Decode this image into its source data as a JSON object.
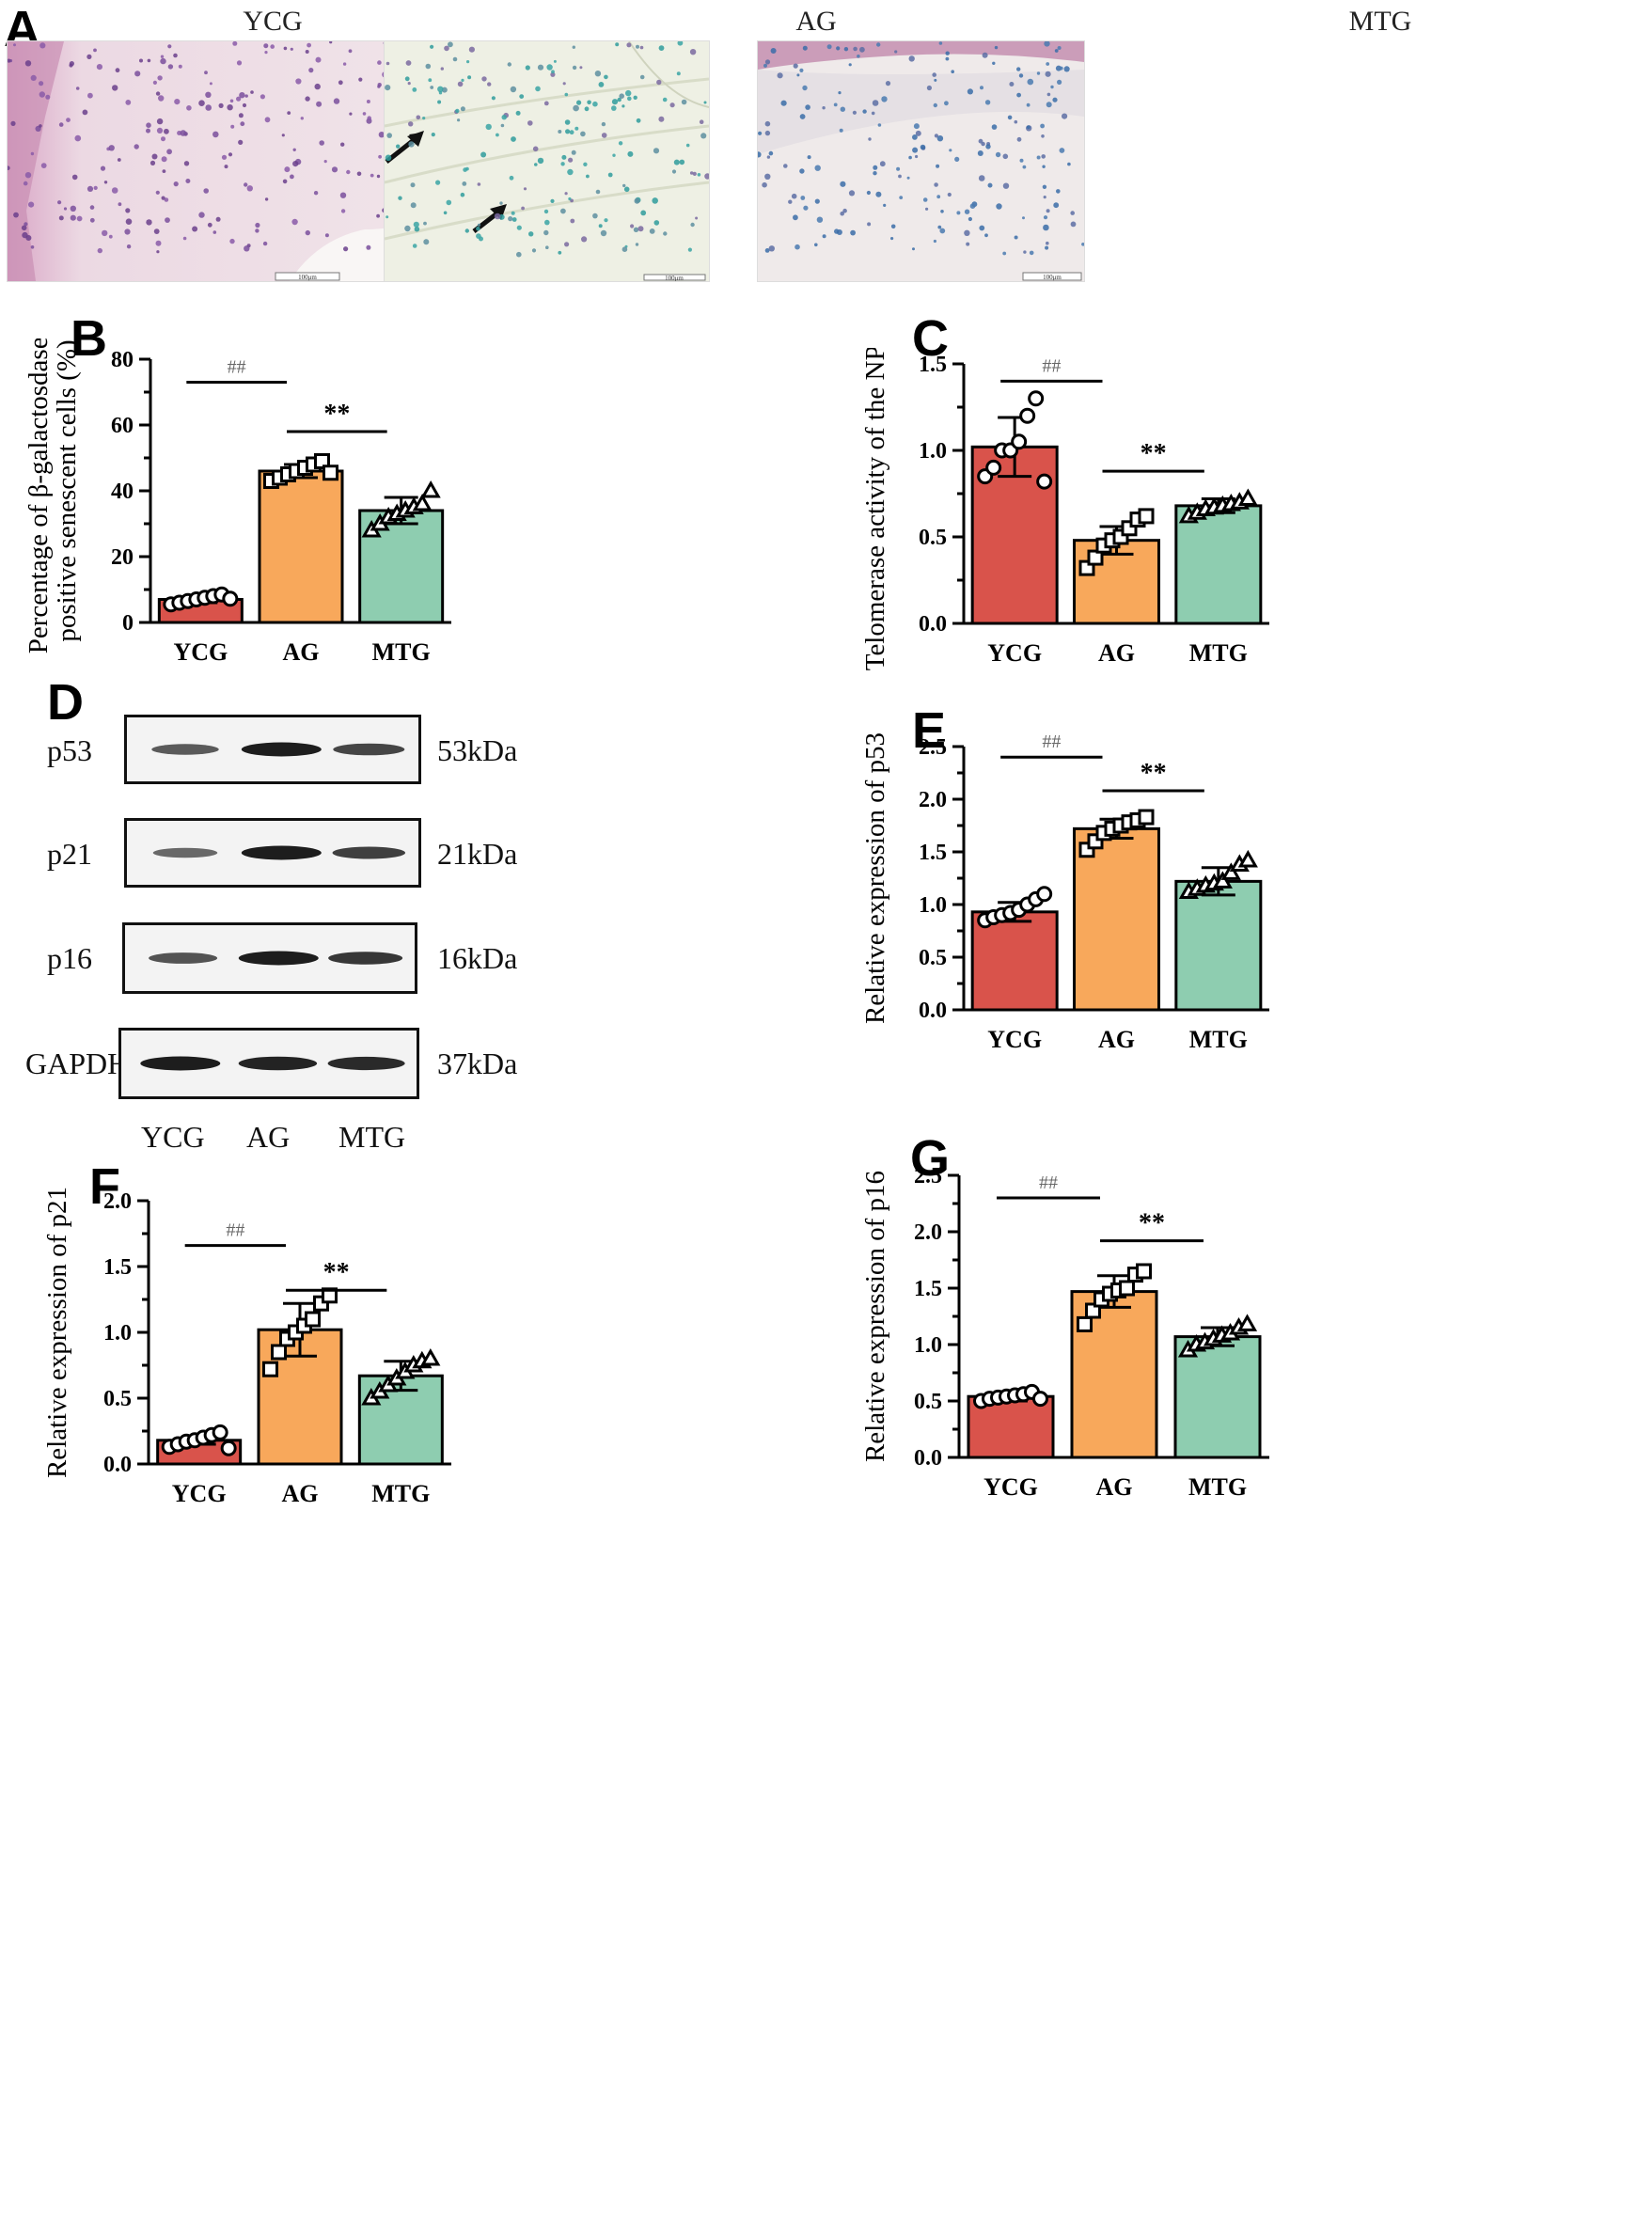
{
  "panels": {
    "A": "A",
    "B": "B",
    "C": "C",
    "D": "D",
    "E": "E",
    "F": "F",
    "G": "G"
  },
  "micrographs": {
    "labels": [
      "YCG",
      "AG",
      "MTG"
    ],
    "scale_bar": "100μm"
  },
  "western_blot": {
    "proteins": [
      {
        "name": "p53",
        "size": "53kDa",
        "intensity": [
          0.55,
          1.0,
          0.7
        ]
      },
      {
        "name": "p21",
        "size": "21kDa",
        "intensity": [
          0.45,
          1.0,
          0.75
        ]
      },
      {
        "name": "p16",
        "size": "16kDa",
        "intensity": [
          0.6,
          1.0,
          0.8
        ]
      },
      {
        "name": "GAPDH",
        "size": "37kDa",
        "intensity": [
          1.0,
          0.95,
          0.9
        ]
      }
    ],
    "lanes": [
      "YCG",
      "AG",
      "MTG"
    ]
  },
  "colors": {
    "YCG": "#d9534b",
    "AG": "#f8a85b",
    "MTG": "#8ecdb0"
  },
  "chart_data": [
    {
      "panel": "B",
      "type": "bar",
      "categories": [
        "YCG",
        "AG",
        "MTG"
      ],
      "values": [
        7,
        46,
        34
      ],
      "errors": [
        1,
        2,
        4
      ],
      "points": [
        [
          5.5,
          6,
          6.5,
          7,
          7.5,
          8,
          8.5,
          7.2
        ],
        [
          43,
          44,
          45,
          46,
          47,
          48,
          49,
          45.5
        ],
        [
          28,
          30,
          32,
          33,
          34,
          35,
          36,
          40
        ]
      ],
      "markers": [
        "circle",
        "square",
        "triangle"
      ],
      "ylabel_lines": [
        "Percentage of β-galactosdase-",
        "positive senescent cells (%)"
      ],
      "ylim": [
        0,
        80
      ],
      "yticks": [
        0,
        20,
        40,
        60,
        80
      ],
      "significance": [
        {
          "from": 0,
          "to": 1,
          "y": 73,
          "label": "##"
        },
        {
          "from": 1,
          "to": 2,
          "y": 58,
          "label": "**"
        }
      ]
    },
    {
      "panel": "C",
      "type": "bar",
      "categories": [
        "YCG",
        "AG",
        "MTG"
      ],
      "values": [
        1.02,
        0.48,
        0.68
      ],
      "errors": [
        0.17,
        0.08,
        0.04
      ],
      "points": [
        [
          0.85,
          0.9,
          1.0,
          1.0,
          1.05,
          1.2,
          1.3,
          0.82
        ],
        [
          0.32,
          0.38,
          0.45,
          0.48,
          0.5,
          0.55,
          0.6,
          0.62
        ],
        [
          0.62,
          0.64,
          0.66,
          0.67,
          0.68,
          0.69,
          0.7,
          0.72
        ]
      ],
      "markers": [
        "circle",
        "square",
        "triangle"
      ],
      "ylabel_lines": [
        "Telomerase activity of the NPCs"
      ],
      "ylim": [
        0,
        1.5
      ],
      "yticks": [
        0.0,
        0.5,
        1.0,
        1.5
      ],
      "significance": [
        {
          "from": 0,
          "to": 1,
          "y": 1.4,
          "label": "##"
        },
        {
          "from": 1,
          "to": 2,
          "y": 0.88,
          "label": "**"
        }
      ]
    },
    {
      "panel": "E",
      "type": "bar",
      "categories": [
        "YCG",
        "AG",
        "MTG"
      ],
      "values": [
        0.93,
        1.72,
        1.22
      ],
      "errors": [
        0.09,
        0.09,
        0.13
      ],
      "points": [
        [
          0.85,
          0.88,
          0.9,
          0.92,
          0.95,
          1.0,
          1.05,
          1.1
        ],
        [
          1.52,
          1.6,
          1.68,
          1.72,
          1.75,
          1.78,
          1.8,
          1.83
        ],
        [
          1.12,
          1.15,
          1.18,
          1.2,
          1.22,
          1.3,
          1.38,
          1.42
        ]
      ],
      "markers": [
        "circle",
        "square",
        "triangle"
      ],
      "ylabel_lines": [
        "Relative expression of p53"
      ],
      "ylim": [
        0,
        2.5
      ],
      "yticks": [
        0.0,
        0.5,
        1.0,
        1.5,
        2.0,
        2.5
      ],
      "significance": [
        {
          "from": 0,
          "to": 1,
          "y": 2.4,
          "label": "##"
        },
        {
          "from": 1,
          "to": 2,
          "y": 2.08,
          "label": "**"
        }
      ]
    },
    {
      "panel": "F",
      "type": "bar",
      "categories": [
        "YCG",
        "AG",
        "MTG"
      ],
      "values": [
        0.18,
        1.02,
        0.67
      ],
      "errors": [
        0.03,
        0.2,
        0.11
      ],
      "points": [
        [
          0.13,
          0.15,
          0.17,
          0.18,
          0.2,
          0.22,
          0.24,
          0.12
        ],
        [
          0.72,
          0.85,
          0.95,
          1.0,
          1.05,
          1.1,
          1.22,
          1.28
        ],
        [
          0.5,
          0.55,
          0.6,
          0.65,
          0.7,
          0.75,
          0.78,
          0.8
        ]
      ],
      "markers": [
        "circle",
        "square",
        "triangle"
      ],
      "ylabel_lines": [
        "Relative expression of p21"
      ],
      "ylim": [
        0,
        2.0
      ],
      "yticks": [
        0.0,
        0.5,
        1.0,
        1.5,
        2.0
      ],
      "significance": [
        {
          "from": 0,
          "to": 1,
          "y": 1.66,
          "label": "##"
        },
        {
          "from": 1,
          "to": 2,
          "y": 1.32,
          "label": "**"
        }
      ]
    },
    {
      "panel": "G",
      "type": "bar",
      "categories": [
        "YCG",
        "AG",
        "MTG"
      ],
      "values": [
        0.54,
        1.47,
        1.07
      ],
      "errors": [
        0.04,
        0.14,
        0.08
      ],
      "points": [
        [
          0.5,
          0.52,
          0.53,
          0.54,
          0.55,
          0.56,
          0.58,
          0.52
        ],
        [
          1.18,
          1.3,
          1.4,
          1.45,
          1.48,
          1.5,
          1.62,
          1.65
        ],
        [
          0.95,
          1.0,
          1.02,
          1.05,
          1.08,
          1.1,
          1.15,
          1.18
        ]
      ],
      "markers": [
        "circle",
        "square",
        "triangle"
      ],
      "ylabel_lines": [
        "Relative expression of p16"
      ],
      "ylim": [
        0,
        2.5
      ],
      "yticks": [
        0.0,
        0.5,
        1.0,
        1.5,
        2.0,
        2.5
      ],
      "significance": [
        {
          "from": 0,
          "to": 1,
          "y": 2.3,
          "label": "##"
        },
        {
          "from": 1,
          "to": 2,
          "y": 1.92,
          "label": "**"
        }
      ]
    }
  ]
}
